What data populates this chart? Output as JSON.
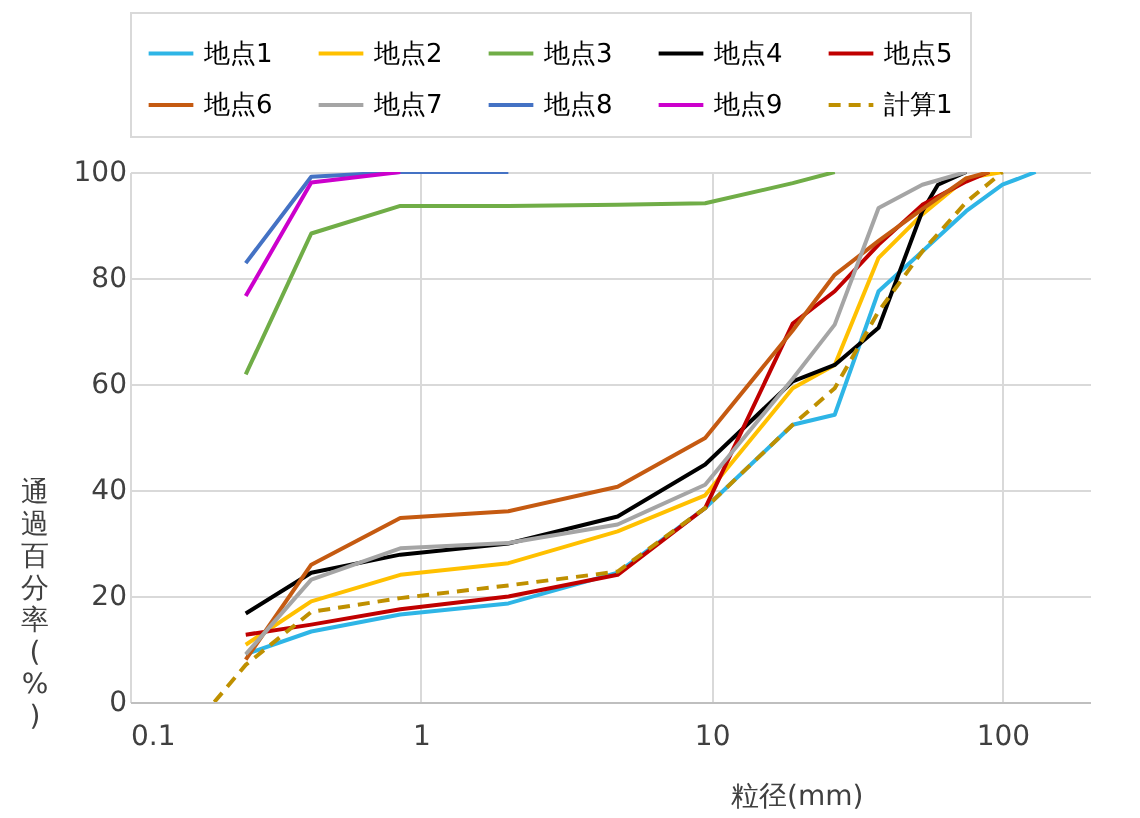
{
  "chart_data": {
    "type": "line",
    "xlabel": "粒径(mm)",
    "ylabel": "通過百分率(%)",
    "log": "x",
    "xlim": [
      0.1,
      200
    ],
    "xticks": [
      0.1,
      1,
      10,
      100
    ],
    "ylim": [
      0,
      100
    ],
    "yticks": [
      0,
      20,
      40,
      60,
      80,
      100
    ],
    "grid": true,
    "legend": "top",
    "marker": "none",
    "series": [
      {
        "name": "地点1",
        "color": "#2eb5e6",
        "line_style": "solid",
        "x": [
          0.25,
          0.42,
          0.85,
          2,
          4.75,
          9.5,
          19,
          26.5,
          37.5,
          53,
          75,
          100,
          130
        ],
        "values": [
          9,
          13.3,
          16.5,
          18.6,
          24.4,
          36.6,
          52.3,
          54.2,
          77.5,
          85,
          92.6,
          97.6,
          100
        ]
      },
      {
        "name": "地点2",
        "color": "#ffc000",
        "line_style": "solid",
        "x": [
          0.25,
          0.42,
          0.85,
          2,
          4.75,
          9.5,
          19,
          26.5,
          37.5,
          53,
          75,
          100
        ],
        "values": [
          10.8,
          19,
          24,
          26.2,
          32.2,
          39,
          59.2,
          63.6,
          83.8,
          92,
          98.8,
          100
        ]
      },
      {
        "name": "地点3",
        "color": "#70ad47",
        "line_style": "solid",
        "x": [
          0.25,
          0.42,
          0.85,
          2,
          4.75,
          9.5,
          19,
          26.5
        ],
        "values": [
          61.8,
          88.4,
          93.6,
          93.6,
          93.8,
          94.1,
          97.9,
          100
        ]
      },
      {
        "name": "地点4",
        "color": "#000000",
        "line_style": "solid",
        "x": [
          0.25,
          0.42,
          0.85,
          2,
          4.75,
          9.5,
          19,
          26.5,
          37.5,
          53,
          60,
          75
        ],
        "values": [
          16.7,
          24.4,
          27.8,
          29.9,
          35,
          44.8,
          60.5,
          63.6,
          70.6,
          92.6,
          97.6,
          100
        ]
      },
      {
        "name": "地点5",
        "color": "#c00000",
        "line_style": "solid",
        "x": [
          0.25,
          0.42,
          0.85,
          2,
          4.75,
          9.5,
          19,
          26.5,
          37.5,
          53,
          75,
          90
        ],
        "values": [
          12.7,
          14.6,
          17.5,
          19.9,
          24,
          36.6,
          71.4,
          77.5,
          86.3,
          93.8,
          98.2,
          100
        ]
      },
      {
        "name": "地点6",
        "color": "#c55a11",
        "line_style": "solid",
        "x": [
          0.25,
          0.42,
          0.85,
          2,
          4.75,
          9.5,
          19,
          26.5,
          37.5,
          53,
          75,
          90
        ],
        "values": [
          8,
          25.9,
          34.7,
          36,
          40.6,
          49.8,
          70.1,
          80.6,
          87,
          93,
          98.8,
          100
        ]
      },
      {
        "name": "地点7",
        "color": "#a5a5a5",
        "line_style": "solid",
        "x": [
          0.25,
          0.42,
          0.85,
          2,
          4.75,
          9.5,
          19,
          26.5,
          37.5,
          53,
          75
        ],
        "values": [
          9,
          23.1,
          29,
          30,
          33.5,
          41,
          61,
          71.2,
          93.2,
          97.6,
          100
        ]
      },
      {
        "name": "地点8",
        "color": "#4472c4",
        "line_style": "solid",
        "x": [
          0.25,
          0.42,
          0.85,
          2
        ],
        "values": [
          82.8,
          99.1,
          100,
          100
        ]
      },
      {
        "name": "地点9",
        "color": "#cc00cc",
        "line_style": "solid",
        "x": [
          0.25,
          0.42,
          0.85
        ],
        "values": [
          76.6,
          98,
          100
        ]
      },
      {
        "name": "計算1",
        "color": "#bf9000",
        "line_style": "dashed",
        "x": [
          0.195,
          0.25,
          0.42,
          0.85,
          2,
          4.75,
          9.5,
          19,
          26.5,
          37.5,
          53,
          75,
          100
        ],
        "values": [
          0,
          7,
          17,
          19.6,
          22,
          24.6,
          36.6,
          52.3,
          59.2,
          73.7,
          85,
          94.3,
          100
        ]
      }
    ]
  }
}
